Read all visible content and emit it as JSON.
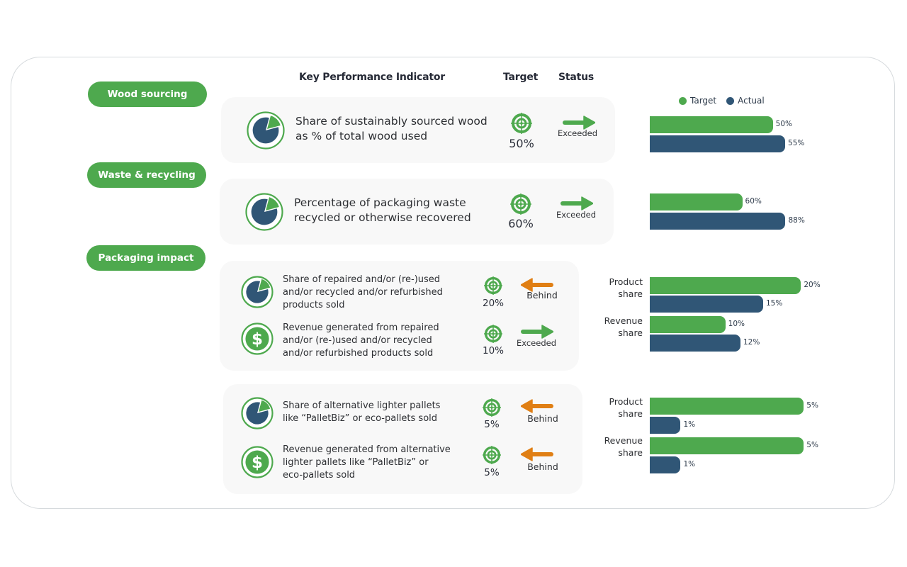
{
  "headers": {
    "kpi": "Key Performance Indicator",
    "target": "Target",
    "status": "Status"
  },
  "categories": [
    {
      "label": "Wood sourcing"
    },
    {
      "label": "Waste & recycling"
    },
    {
      "label": "Packaging impact"
    }
  ],
  "legend": {
    "target_label": "Target",
    "actual_label": "Actual",
    "target_color": "#4ea94e",
    "actual_color": "#305676"
  },
  "colors": {
    "green": "#4ea94e",
    "navy": "#305676",
    "orange": "#e07f14"
  },
  "kpis": [
    {
      "icon": "pie-chart-icon",
      "text": "Share of sustainably sourced wood as % of total wood used",
      "lines": [
        "Share of sustainably sourced wood",
        "as % of total wood used"
      ],
      "target": "50%",
      "status": "Exceeded",
      "direction": "right"
    },
    {
      "icon": "pie-chart-icon",
      "text": "Percentage of packaging waste recycled or otherwise recovered",
      "lines": [
        "Percentage of packaging waste",
        "recycled or otherwise recovered"
      ],
      "target": "60%",
      "status": "Exceeded",
      "direction": "right"
    },
    {
      "icon": "pie-chart-icon",
      "text": "Share of repaired and/or (re-)used and/or recycled and/or refurbished products sold",
      "lines": [
        "Share of repaired and/or (re-)used",
        "and/or recycled and/or refurbished",
        "products sold"
      ],
      "target": "20%",
      "status": "Behind",
      "direction": "left"
    },
    {
      "icon": "dollar-icon",
      "text": "Revenue generated from repaired and/or (re-)used and/or recycled and/or refurbished products sold",
      "lines": [
        "Revenue generated from repaired",
        "and/or (re-)used and/or recycled",
        "and/or refurbished products sold"
      ],
      "target": "10%",
      "status": "Exceeded",
      "direction": "right"
    },
    {
      "icon": "pie-chart-icon",
      "text": "Share of alternative lighter pallets like “PalletBiz” or eco-pallets sold",
      "lines": [
        "Share of alternative lighter pallets",
        "like “PalletBiz” or eco-pallets sold"
      ],
      "target": "5%",
      "status": "Behind",
      "direction": "left"
    },
    {
      "icon": "dollar-icon",
      "text": "Revenue generated from alternative lighter pallets like “PalletBiz” or eco-pallets sold",
      "lines": [
        "Revenue generated from alternative",
        "lighter pallets like “PalletBiz” or",
        "eco-pallets sold"
      ],
      "target": "5%",
      "status": "Behind",
      "direction": "left"
    }
  ],
  "chart_data": [
    {
      "type": "bar",
      "orientation": "horizontal",
      "title": "Share of sustainably sourced wood",
      "categories": [
        ""
      ],
      "series": [
        {
          "name": "Target",
          "values": [
            50
          ]
        },
        {
          "name": "Actual",
          "values": [
            55
          ]
        }
      ],
      "value_labels": {
        "Target": [
          "50%"
        ],
        "Actual": [
          "55%"
        ]
      },
      "xlim": [
        0,
        57
      ],
      "legend": "top-right",
      "grid": false
    },
    {
      "type": "bar",
      "orientation": "horizontal",
      "title": "Packaging waste recycled or recovered",
      "categories": [
        ""
      ],
      "series": [
        {
          "name": "Target",
          "values": [
            60
          ]
        },
        {
          "name": "Actual",
          "values": [
            88
          ]
        }
      ],
      "value_labels": {
        "Target": [
          "60%"
        ],
        "Actual": [
          "88%"
        ]
      },
      "xlim": [
        0,
        91
      ],
      "grid": false
    },
    {
      "type": "bar",
      "orientation": "horizontal",
      "title": "Repaired / reused / recycled / refurbished products",
      "categories": [
        "Product share",
        "Revenue share"
      ],
      "category_lines": [
        [
          "Product",
          "share"
        ],
        [
          "Revenue",
          "share"
        ]
      ],
      "series": [
        {
          "name": "Target",
          "values": [
            20,
            10
          ]
        },
        {
          "name": "Actual",
          "values": [
            15,
            12
          ]
        }
      ],
      "value_labels": {
        "Target": [
          "20%",
          "10%"
        ],
        "Actual": [
          "15%",
          "12%"
        ]
      },
      "xlim": [
        0,
        21
      ],
      "grid": false
    },
    {
      "type": "bar",
      "orientation": "horizontal",
      "title": "Alternative lighter pallets",
      "categories": [
        "Product share",
        "Revenue share"
      ],
      "category_lines": [
        [
          "Product",
          "share"
        ],
        [
          "Revenue",
          "share"
        ]
      ],
      "series": [
        {
          "name": "Target",
          "values": [
            5,
            5
          ]
        },
        {
          "name": "Actual",
          "values": [
            1,
            1
          ]
        }
      ],
      "value_labels": {
        "Target": [
          "5%",
          "5%"
        ],
        "Actual": [
          "1%",
          "1%"
        ]
      },
      "xlim": [
        0,
        5.2
      ],
      "grid": false
    }
  ]
}
